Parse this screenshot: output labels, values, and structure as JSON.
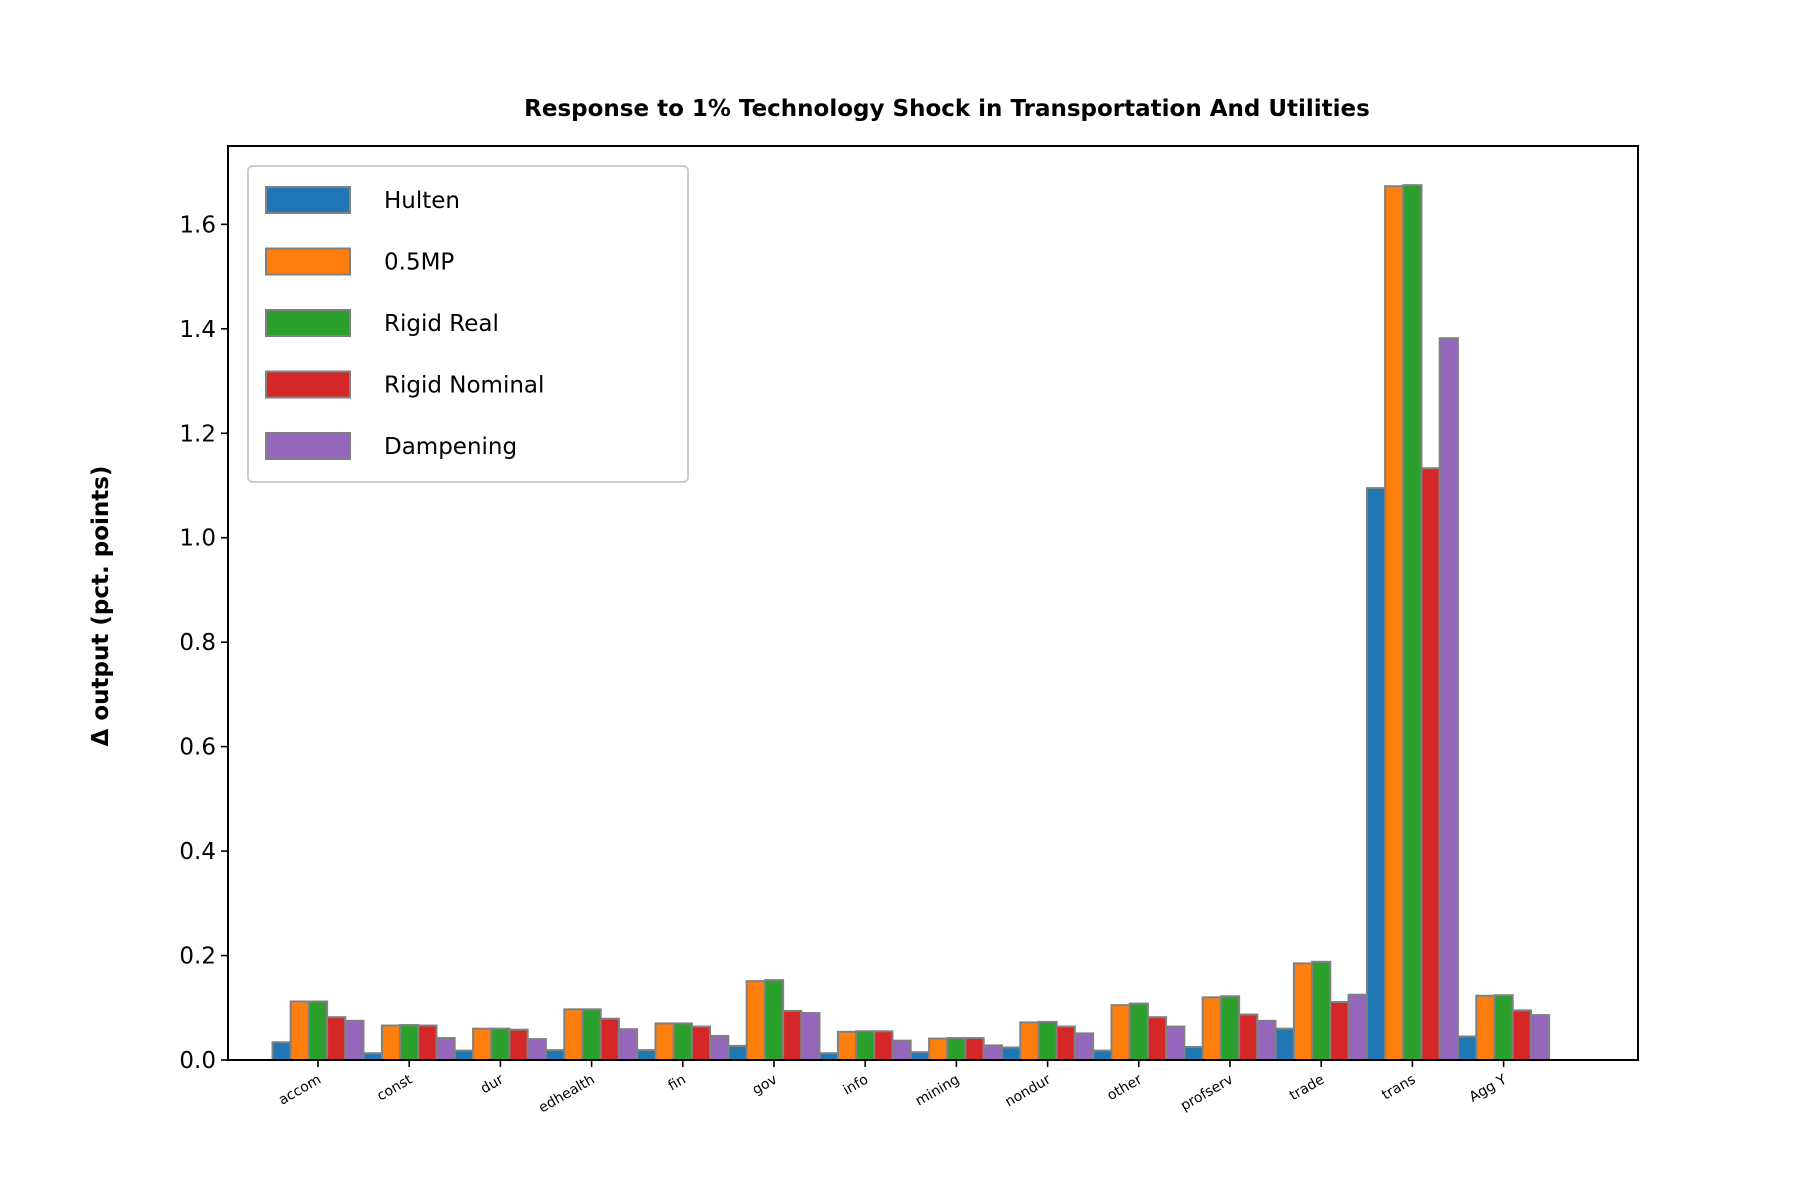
{
  "chart_data": {
    "type": "bar",
    "title": "Response to 1% Technology Shock in Transportation And Utilities",
    "xlabel": "",
    "ylabel": "Δ output (pct. points)",
    "ylim": [
      0,
      1.75
    ],
    "yticks": [
      "0.0",
      "0.2",
      "0.4",
      "0.6",
      "0.8",
      "1.0",
      "1.2",
      "1.4",
      "1.6"
    ],
    "grid": false,
    "legend_position": "top-left",
    "categories": [
      "accom",
      "const",
      "dur",
      "edhealth",
      "fin",
      "gov",
      "info",
      "mining",
      "nondur",
      "other",
      "profserv",
      "trade",
      "trans",
      "Agg Y"
    ],
    "series": [
      {
        "name": "Hulten",
        "color": "#1f77b4",
        "values": [
          0.034,
          0.013,
          0.018,
          0.019,
          0.019,
          0.027,
          0.013,
          0.015,
          0.024,
          0.018,
          0.025,
          0.06,
          1.095,
          0.045
        ]
      },
      {
        "name": "0.5MP",
        "color": "#ff7f0e",
        "values": [
          0.112,
          0.066,
          0.06,
          0.097,
          0.07,
          0.151,
          0.054,
          0.041,
          0.072,
          0.105,
          0.12,
          0.185,
          1.673,
          0.123
        ]
      },
      {
        "name": "Rigid Real",
        "color": "#2ca02c",
        "values": [
          0.112,
          0.067,
          0.06,
          0.097,
          0.07,
          0.153,
          0.055,
          0.042,
          0.073,
          0.108,
          0.122,
          0.188,
          1.675,
          0.124
        ]
      },
      {
        "name": "Rigid Nominal",
        "color": "#d62728",
        "values": [
          0.082,
          0.066,
          0.058,
          0.079,
          0.064,
          0.094,
          0.055,
          0.042,
          0.064,
          0.082,
          0.087,
          0.111,
          1.133,
          0.095
        ]
      },
      {
        "name": "Dampening",
        "color": "#9467bd",
        "values": [
          0.075,
          0.042,
          0.04,
          0.059,
          0.046,
          0.09,
          0.037,
          0.028,
          0.051,
          0.064,
          0.075,
          0.125,
          1.382,
          0.086
        ]
      }
    ]
  }
}
